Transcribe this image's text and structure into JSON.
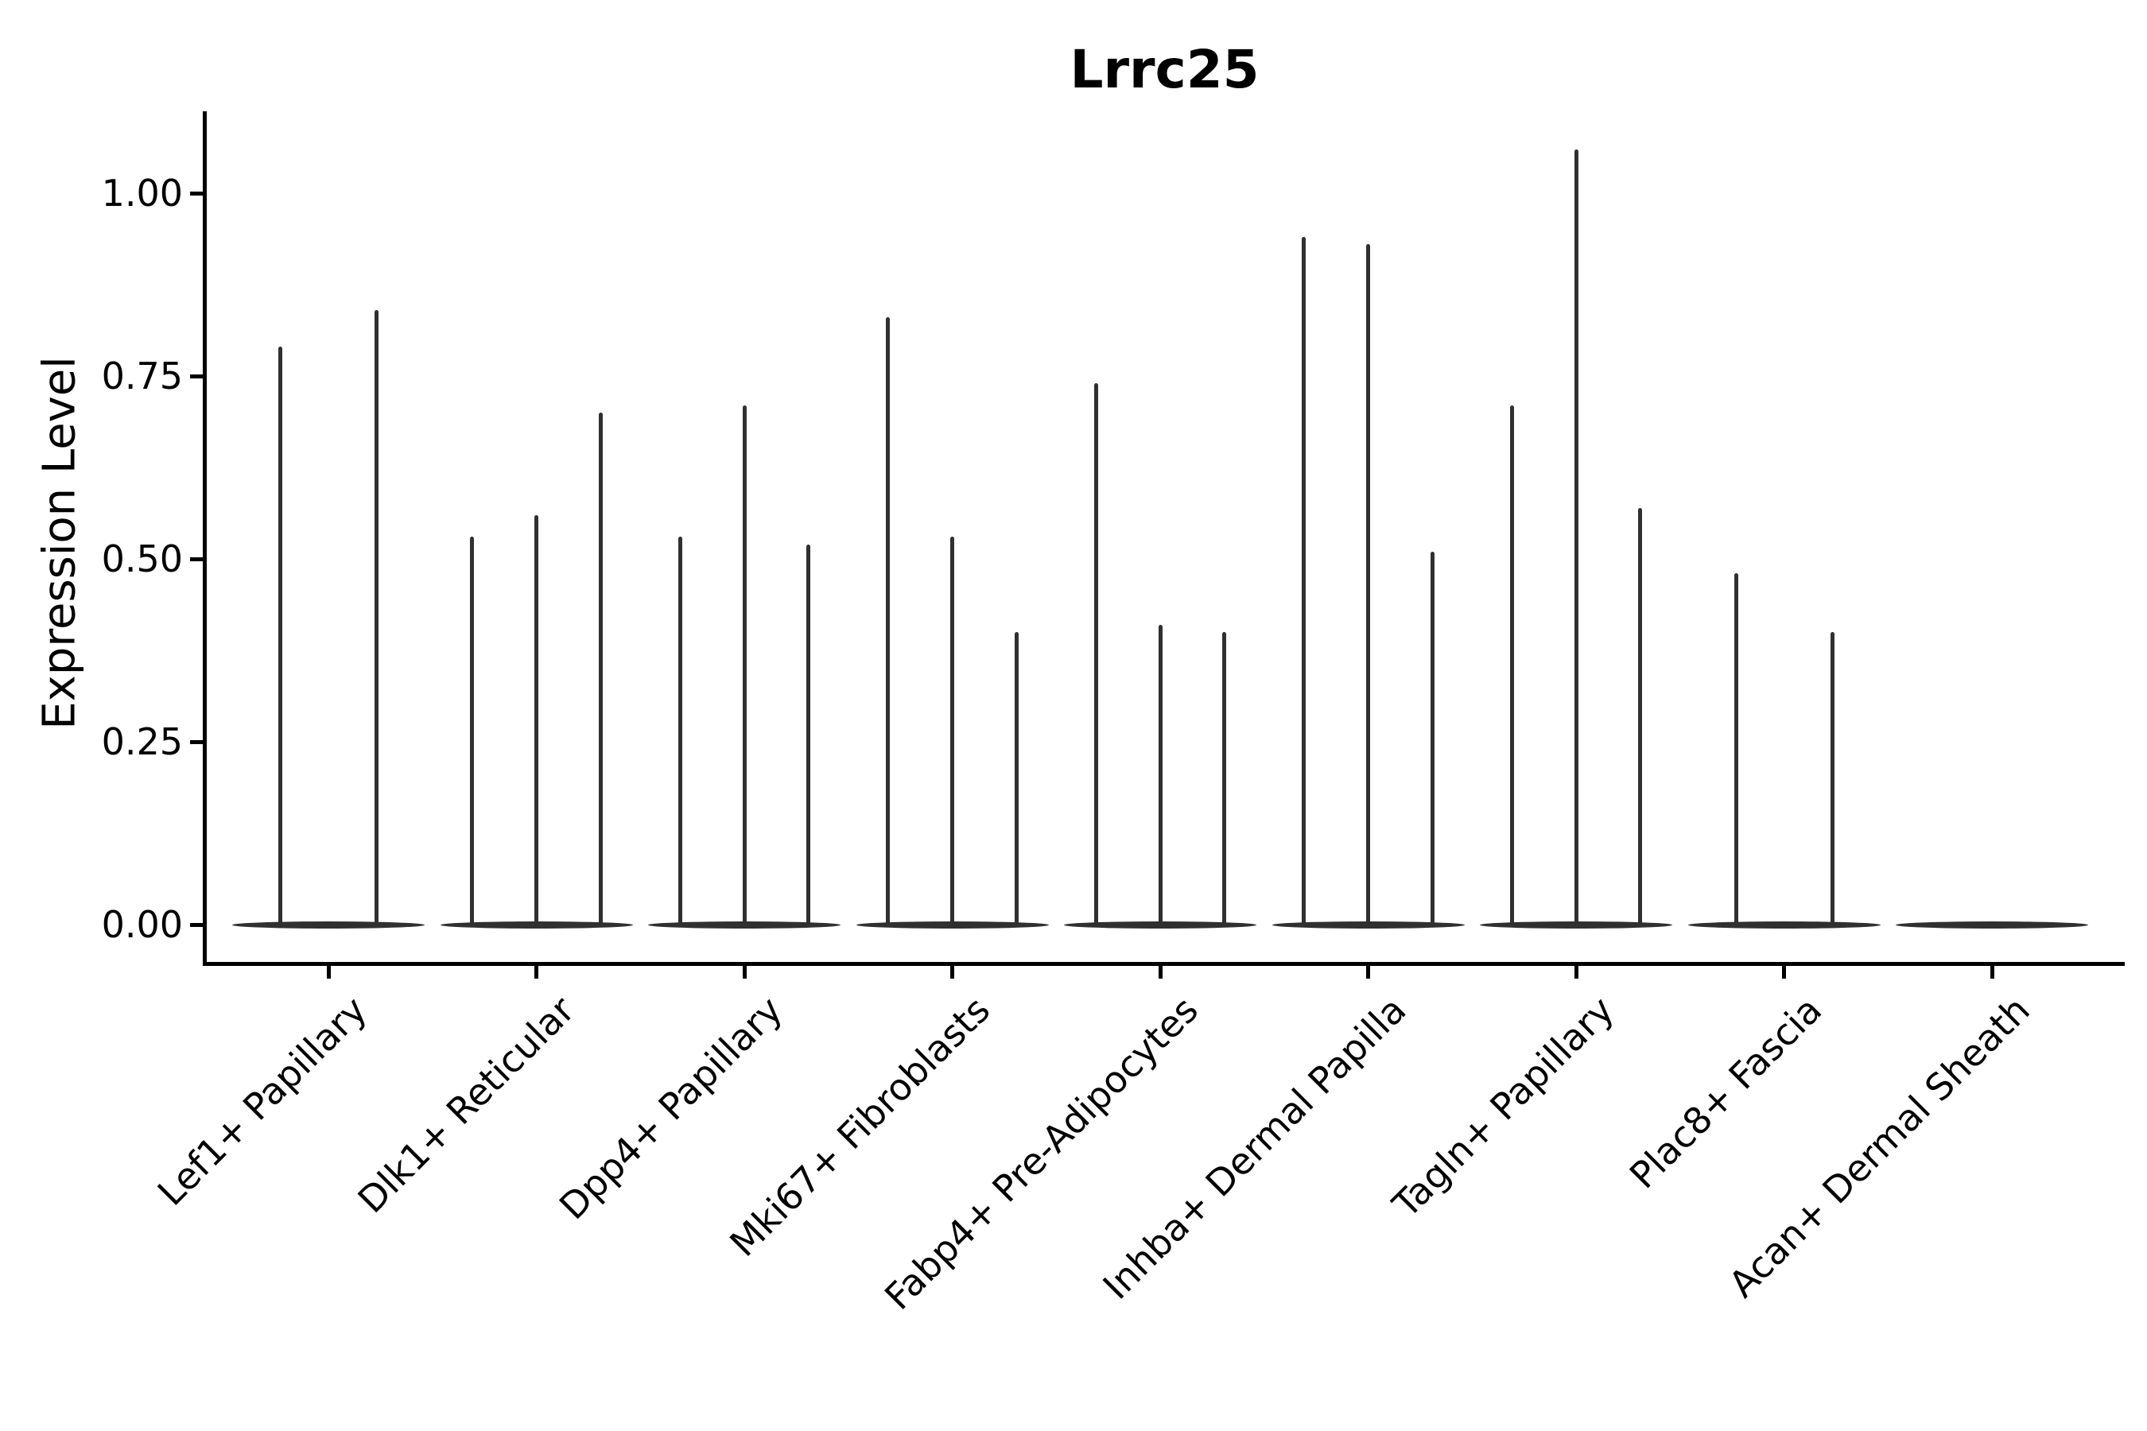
{
  "chart_data": {
    "type": "violin",
    "title": "Lrrc25",
    "ylabel": "Expression Level",
    "xlabel": "",
    "ylim": [
      -0.05,
      1.11
    ],
    "yticks": [
      {
        "label": "0.00",
        "value": 0.0
      },
      {
        "label": "0.25",
        "value": 0.25
      },
      {
        "label": "0.50",
        "value": 0.5
      },
      {
        "label": "0.75",
        "value": 0.75
      },
      {
        "label": "1.00",
        "value": 1.0
      }
    ],
    "categories": [
      "Lef1+ Papillary",
      "Dlk1+ Reticular",
      "Dpp4+ Papillary",
      "Mki67+ Fibroblasts",
      "Fabp4+ Pre-Adipocytes",
      "Inhba+ Dermal Papilla",
      "Tagln+ Papillary",
      "Plac8+ Fascia",
      "Acan+ Dermal Sheath"
    ],
    "violin_maxima_per_category": [
      [
        0.79,
        0.84
      ],
      [
        0.53,
        0.56,
        0.7
      ],
      [
        0.53,
        0.71,
        0.52
      ],
      [
        0.83,
        0.53,
        0.4
      ],
      [
        0.74,
        0.41,
        0.4
      ],
      [
        0.94,
        0.93,
        0.51
      ],
      [
        0.71,
        1.06,
        0.57
      ],
      [
        0.48,
        0.4
      ],
      [
        0.0
      ]
    ],
    "violin_description": "Needle-thin violins: expression mass concentrated at 0 (flat lens-shaped base) with a thin spike up to the max expressing cell; Acan+ Dermal Sheath is all zero (no spike).",
    "violin_color": "#303030",
    "axis_color": "#000000",
    "background_color": "#ffffff",
    "grid": false,
    "legend": false,
    "x_tick_label_rotation_deg": 45
  }
}
